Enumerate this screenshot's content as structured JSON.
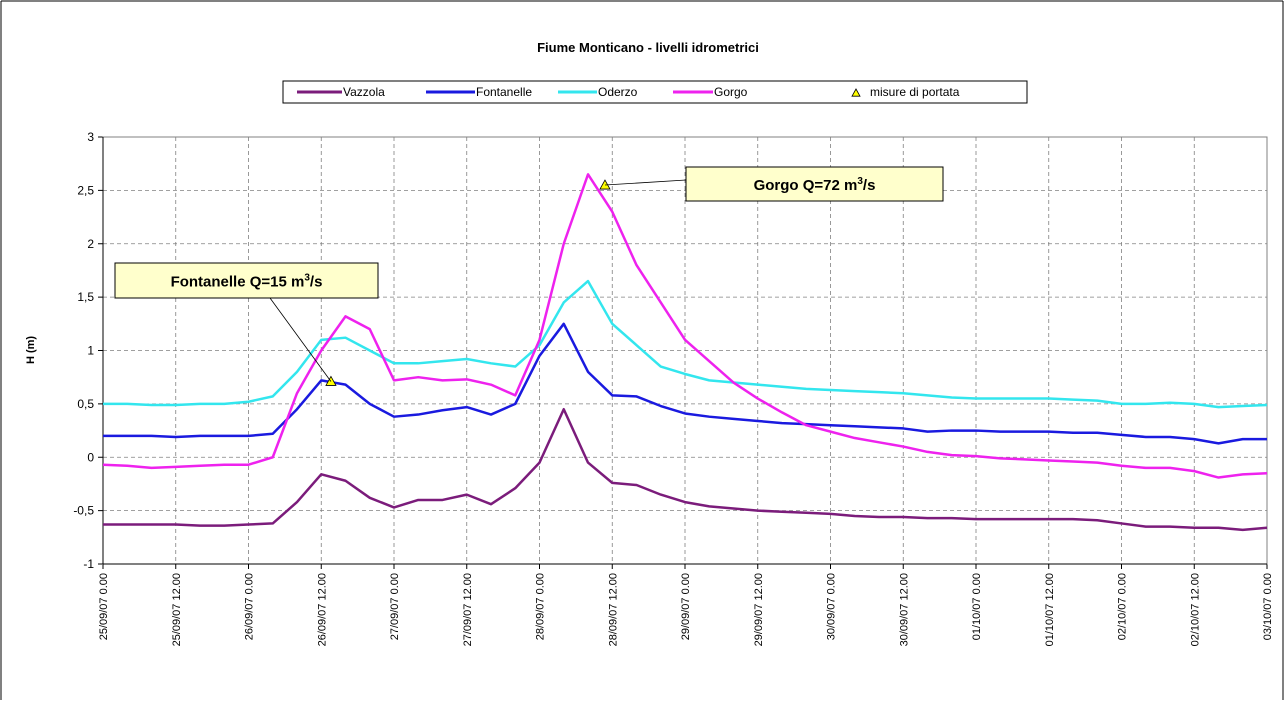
{
  "chart_data": {
    "type": "line",
    "title": "Fiume Monticano - livelli idrometrici",
    "y_label": "H (m)",
    "x": [
      0,
      4,
      8,
      12,
      16,
      20,
      24,
      28,
      32,
      36,
      40,
      44,
      48,
      52,
      56,
      60,
      64,
      68,
      72,
      76,
      80,
      84,
      88,
      92,
      96,
      100,
      104,
      108,
      112,
      116,
      120,
      124,
      128,
      132,
      136,
      140,
      144,
      148,
      152,
      156,
      160,
      164,
      168,
      172,
      176,
      180,
      184,
      188,
      192
    ],
    "xlim": [
      0,
      192
    ],
    "xticks": [
      {
        "value": 0,
        "label": "25/09/07 0.00"
      },
      {
        "value": 12,
        "label": "25/09/07 12.00"
      },
      {
        "value": 24,
        "label": "26/09/07 0.00"
      },
      {
        "value": 36,
        "label": "26/09/07 12.00"
      },
      {
        "value": 48,
        "label": "27/09/07 0.00"
      },
      {
        "value": 60,
        "label": "27/09/07 12.00"
      },
      {
        "value": 72,
        "label": "28/09/07 0.00"
      },
      {
        "value": 84,
        "label": "28/09/07 12.00"
      },
      {
        "value": 96,
        "label": "29/09/07 0.00"
      },
      {
        "value": 108,
        "label": "29/09/07 12.00"
      },
      {
        "value": 120,
        "label": "30/09/07 0.00"
      },
      {
        "value": 132,
        "label": "30/09/07 12.00"
      },
      {
        "value": 144,
        "label": "01/10/07 0.00"
      },
      {
        "value": 156,
        "label": "01/10/07 12.00"
      },
      {
        "value": 168,
        "label": "02/10/07 0.00"
      },
      {
        "value": 180,
        "label": "02/10/07 12.00"
      },
      {
        "value": 192,
        "label": "03/10/07 0.00"
      }
    ],
    "ylim": [
      -1,
      3
    ],
    "yticks": [
      -1,
      {
        "value": -0.5,
        "label": "-0,5"
      },
      0,
      {
        "value": 0.5,
        "label": "0,5"
      },
      1,
      {
        "value": 1.5,
        "label": "1,5"
      },
      2,
      {
        "value": 2.5,
        "label": "2,5"
      },
      3
    ],
    "grid": true,
    "legend": "top",
    "series": [
      {
        "name": "Vazzola",
        "color": "#7b1c7b",
        "values": [
          -0.63,
          -0.63,
          -0.63,
          -0.63,
          -0.64,
          -0.64,
          -0.63,
          -0.62,
          -0.42,
          -0.16,
          -0.22,
          -0.38,
          -0.47,
          -0.4,
          -0.4,
          -0.35,
          -0.44,
          -0.29,
          -0.05,
          0.45,
          -0.05,
          -0.24,
          -0.26,
          -0.35,
          -0.42,
          -0.46,
          -0.48,
          -0.5,
          -0.51,
          -0.52,
          -0.53,
          -0.55,
          -0.56,
          -0.56,
          -0.57,
          -0.57,
          -0.58,
          -0.58,
          -0.58,
          -0.58,
          -0.58,
          -0.59,
          -0.62,
          -0.65,
          -0.65,
          -0.66,
          -0.66,
          -0.68,
          -0.66
        ]
      },
      {
        "name": "Fontanelle",
        "color": "#1a1adf",
        "values": [
          0.2,
          0.2,
          0.2,
          0.19,
          0.2,
          0.2,
          0.2,
          0.22,
          0.45,
          0.72,
          0.68,
          0.5,
          0.38,
          0.4,
          0.44,
          0.47,
          0.4,
          0.5,
          0.95,
          1.25,
          0.8,
          0.58,
          0.57,
          0.48,
          0.41,
          0.38,
          0.36,
          0.34,
          0.32,
          0.31,
          0.3,
          0.29,
          0.28,
          0.27,
          0.24,
          0.25,
          0.25,
          0.24,
          0.24,
          0.24,
          0.23,
          0.23,
          0.21,
          0.19,
          0.19,
          0.17,
          0.13,
          0.17,
          0.17
        ]
      },
      {
        "name": "Oderzo",
        "color": "#33e6ee",
        "values": [
          0.5,
          0.5,
          0.49,
          0.49,
          0.5,
          0.5,
          0.52,
          0.57,
          0.8,
          1.1,
          1.12,
          1.0,
          0.88,
          0.88,
          0.9,
          0.92,
          0.88,
          0.85,
          1.05,
          1.45,
          1.65,
          1.25,
          1.05,
          0.85,
          0.78,
          0.72,
          0.7,
          0.68,
          0.66,
          0.64,
          0.63,
          0.62,
          0.61,
          0.6,
          0.58,
          0.56,
          0.55,
          0.55,
          0.55,
          0.55,
          0.54,
          0.53,
          0.5,
          0.5,
          0.51,
          0.5,
          0.47,
          0.48,
          0.49
        ]
      },
      {
        "name": "Gorgo",
        "color": "#ee22ee",
        "values": [
          -0.07,
          -0.08,
          -0.1,
          -0.09,
          -0.08,
          -0.07,
          -0.07,
          0.0,
          0.6,
          1.0,
          1.32,
          1.2,
          0.72,
          0.75,
          0.72,
          0.73,
          0.68,
          0.58,
          1.1,
          2.0,
          2.65,
          2.3,
          1.8,
          1.45,
          1.1,
          0.9,
          0.7,
          0.55,
          0.42,
          0.3,
          0.24,
          0.18,
          0.14,
          0.1,
          0.05,
          0.02,
          0.01,
          -0.01,
          -0.02,
          -0.03,
          -0.04,
          -0.05,
          -0.08,
          -0.1,
          -0.1,
          -0.13,
          -0.19,
          -0.16,
          -0.15
        ]
      },
      {
        "name": "misure di portata",
        "color": "#ffff00",
        "marker": "triangle",
        "x": [
          37.6,
          82.8
        ],
        "values": [
          0.71,
          2.55
        ]
      }
    ],
    "annotations": [
      {
        "text_parts": [
          "Fontanelle Q=15 m",
          "3",
          "/s"
        ]
      },
      {
        "text_parts": [
          "Gorgo Q=72 m",
          "3",
          "/s"
        ]
      }
    ]
  }
}
